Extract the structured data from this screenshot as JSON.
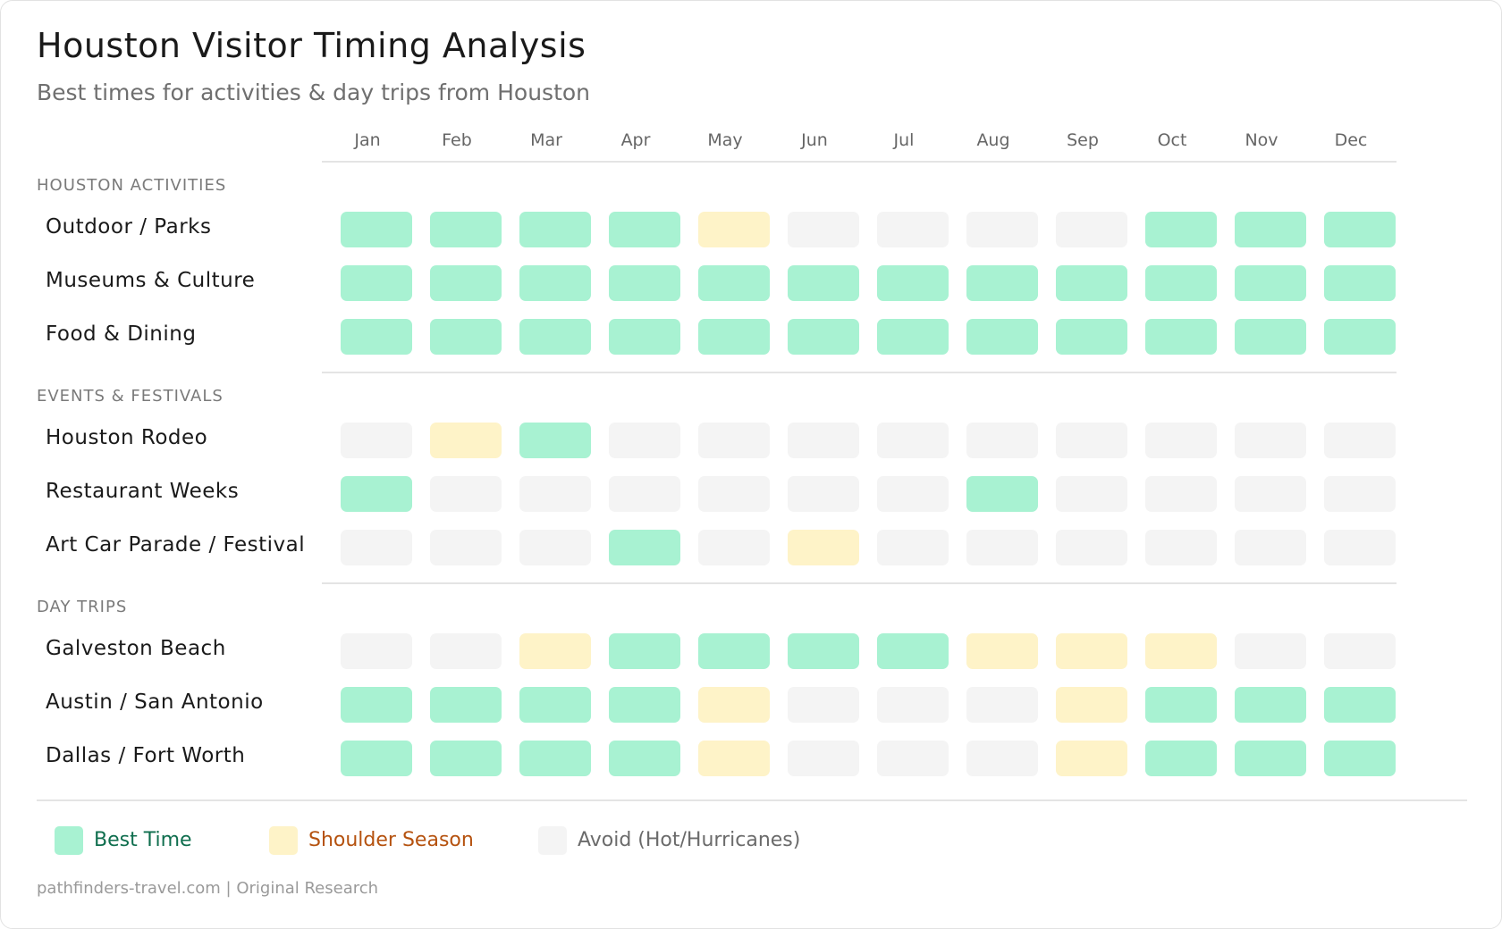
{
  "header": {
    "title": "Houston Visitor Timing Analysis",
    "subtitle": "Best times for activities & day trips from Houston"
  },
  "months": [
    "Jan",
    "Feb",
    "Mar",
    "Apr",
    "May",
    "Jun",
    "Jul",
    "Aug",
    "Sep",
    "Oct",
    "Nov",
    "Dec"
  ],
  "colors": {
    "best": "#a8f2d2",
    "shoulder": "#fef3c8",
    "avoid": "#f4f4f4",
    "best_text": "#0f6e4e",
    "shoulder_text": "#b5520f",
    "avoid_text": "#6b6b6b"
  },
  "sections": [
    {
      "label": "HOUSTON ACTIVITIES",
      "rows": [
        {
          "label": "Outdoor / Parks",
          "values": [
            "best",
            "best",
            "best",
            "best",
            "shoulder",
            "avoid",
            "avoid",
            "avoid",
            "avoid",
            "best",
            "best",
            "best"
          ]
        },
        {
          "label": "Museums & Culture",
          "values": [
            "best",
            "best",
            "best",
            "best",
            "best",
            "best",
            "best",
            "best",
            "best",
            "best",
            "best",
            "best"
          ]
        },
        {
          "label": "Food & Dining",
          "values": [
            "best",
            "best",
            "best",
            "best",
            "best",
            "best",
            "best",
            "best",
            "best",
            "best",
            "best",
            "best"
          ]
        }
      ]
    },
    {
      "label": "EVENTS & FESTIVALS",
      "rows": [
        {
          "label": "Houston Rodeo",
          "values": [
            "avoid",
            "shoulder",
            "best",
            "avoid",
            "avoid",
            "avoid",
            "avoid",
            "avoid",
            "avoid",
            "avoid",
            "avoid",
            "avoid"
          ]
        },
        {
          "label": "Restaurant Weeks",
          "values": [
            "best",
            "avoid",
            "avoid",
            "avoid",
            "avoid",
            "avoid",
            "avoid",
            "best",
            "avoid",
            "avoid",
            "avoid",
            "avoid"
          ]
        },
        {
          "label": "Art Car Parade / Festival",
          "values": [
            "avoid",
            "avoid",
            "avoid",
            "best",
            "avoid",
            "shoulder",
            "avoid",
            "avoid",
            "avoid",
            "avoid",
            "avoid",
            "avoid"
          ]
        }
      ]
    },
    {
      "label": "DAY TRIPS",
      "rows": [
        {
          "label": "Galveston Beach",
          "values": [
            "avoid",
            "avoid",
            "shoulder",
            "best",
            "best",
            "best",
            "best",
            "shoulder",
            "shoulder",
            "shoulder",
            "avoid",
            "avoid"
          ]
        },
        {
          "label": "Austin / San Antonio",
          "values": [
            "best",
            "best",
            "best",
            "best",
            "shoulder",
            "avoid",
            "avoid",
            "avoid",
            "shoulder",
            "best",
            "best",
            "best"
          ]
        },
        {
          "label": "Dallas / Fort Worth",
          "values": [
            "best",
            "best",
            "best",
            "best",
            "shoulder",
            "avoid",
            "avoid",
            "avoid",
            "shoulder",
            "best",
            "best",
            "best"
          ]
        }
      ]
    }
  ],
  "legend": [
    {
      "key": "best",
      "label": "Best Time"
    },
    {
      "key": "shoulder",
      "label": "Shoulder Season"
    },
    {
      "key": "avoid",
      "label": "Avoid (Hot/Hurricanes)"
    }
  ],
  "footer": "pathfinders-travel.com | Original Research",
  "chart_data": {
    "type": "heatmap",
    "title": "Houston Visitor Timing Analysis",
    "subtitle": "Best times for activities & day trips from Houston",
    "x": [
      "Jan",
      "Feb",
      "Mar",
      "Apr",
      "May",
      "Jun",
      "Jul",
      "Aug",
      "Sep",
      "Oct",
      "Nov",
      "Dec"
    ],
    "categories_scale": {
      "best": "Best Time",
      "shoulder": "Shoulder Season",
      "avoid": "Avoid (Hot/Hurricanes)"
    },
    "groups": [
      {
        "group": "Houston Activities",
        "rows": [
          {
            "name": "Outdoor / Parks",
            "values": [
              "best",
              "best",
              "best",
              "best",
              "shoulder",
              "avoid",
              "avoid",
              "avoid",
              "avoid",
              "best",
              "best",
              "best"
            ]
          },
          {
            "name": "Museums & Culture",
            "values": [
              "best",
              "best",
              "best",
              "best",
              "best",
              "best",
              "best",
              "best",
              "best",
              "best",
              "best",
              "best"
            ]
          },
          {
            "name": "Food & Dining",
            "values": [
              "best",
              "best",
              "best",
              "best",
              "best",
              "best",
              "best",
              "best",
              "best",
              "best",
              "best",
              "best"
            ]
          }
        ]
      },
      {
        "group": "Events & Festivals",
        "rows": [
          {
            "name": "Houston Rodeo",
            "values": [
              "avoid",
              "shoulder",
              "best",
              "avoid",
              "avoid",
              "avoid",
              "avoid",
              "avoid",
              "avoid",
              "avoid",
              "avoid",
              "avoid"
            ]
          },
          {
            "name": "Restaurant Weeks",
            "values": [
              "best",
              "avoid",
              "avoid",
              "avoid",
              "avoid",
              "avoid",
              "avoid",
              "best",
              "avoid",
              "avoid",
              "avoid",
              "avoid"
            ]
          },
          {
            "name": "Art Car Parade / Festival",
            "values": [
              "avoid",
              "avoid",
              "avoid",
              "best",
              "avoid",
              "shoulder",
              "avoid",
              "avoid",
              "avoid",
              "avoid",
              "avoid",
              "avoid"
            ]
          }
        ]
      },
      {
        "group": "Day Trips",
        "rows": [
          {
            "name": "Galveston Beach",
            "values": [
              "avoid",
              "avoid",
              "shoulder",
              "best",
              "best",
              "best",
              "best",
              "shoulder",
              "shoulder",
              "shoulder",
              "avoid",
              "avoid"
            ]
          },
          {
            "name": "Austin / San Antonio",
            "values": [
              "best",
              "best",
              "best",
              "best",
              "shoulder",
              "avoid",
              "avoid",
              "avoid",
              "shoulder",
              "best",
              "best",
              "best"
            ]
          },
          {
            "name": "Dallas / Fort Worth",
            "values": [
              "best",
              "best",
              "best",
              "best",
              "shoulder",
              "avoid",
              "avoid",
              "avoid",
              "shoulder",
              "best",
              "best",
              "best"
            ]
          }
        ]
      }
    ],
    "legend": [
      "Best Time",
      "Shoulder Season",
      "Avoid (Hot/Hurricanes)"
    ],
    "legend_position": "bottom",
    "grid": false
  }
}
